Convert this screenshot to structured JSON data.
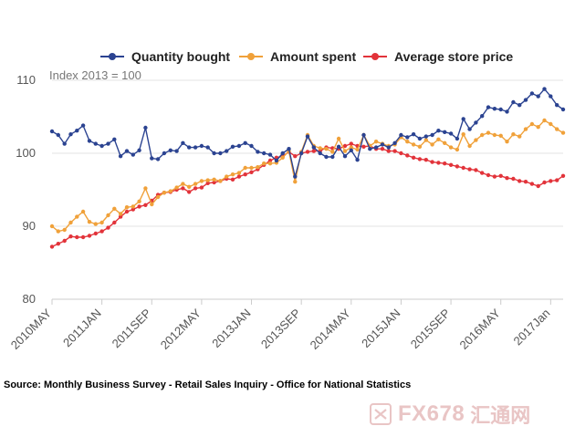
{
  "legend": {
    "quantity": "Quantity bought",
    "amount": "Amount spent",
    "price": "Average store price"
  },
  "index_note": "Index 2013 = 100",
  "source": "Source: Monthly Business Survey - Retail Sales Inquiry - Office for National Statistics",
  "watermark": {
    "latin": "FX678",
    "chinese": "汇通网"
  },
  "colors": {
    "quantity": "#2b4391",
    "amount": "#f0a13a",
    "price": "#e2333a",
    "grid": "#e3e3e3",
    "axis": "#555555"
  },
  "chart_data": {
    "type": "line",
    "title": "",
    "xlabel": "",
    "ylabel": "",
    "ylim": [
      80,
      110
    ],
    "yticks": [
      80,
      90,
      100,
      110
    ],
    "x_tick_labels": [
      "2010MAY",
      "2011JAN",
      "2011SEP",
      "2012MAY",
      "2013JAN",
      "2013SEP",
      "2014MAY",
      "2015JAN",
      "2015SEP",
      "2016MAY",
      "2017Jan"
    ],
    "x_tick_index": [
      0,
      8,
      16,
      24,
      32,
      40,
      48,
      56,
      64,
      72,
      80
    ],
    "series": [
      {
        "name": "Quantity bought",
        "values": [
          103.0,
          102.5,
          101.3,
          102.6,
          103.1,
          103.8,
          101.7,
          101.3,
          101.0,
          101.3,
          101.9,
          99.6,
          100.3,
          99.8,
          100.4,
          103.5,
          99.3,
          99.2,
          100.0,
          100.4,
          100.3,
          101.4,
          100.8,
          100.8,
          101.0,
          100.8,
          100.0,
          100.0,
          100.3,
          100.9,
          101.0,
          101.4,
          101.0,
          100.2,
          100.0,
          99.8,
          99.0,
          100.0,
          100.6,
          96.8,
          100.0,
          102.3,
          100.8,
          100.0,
          99.5,
          99.5,
          100.9,
          99.6,
          100.4,
          99.1,
          102.5,
          100.6,
          100.8,
          101.2,
          100.8,
          101.4,
          102.5,
          102.2,
          102.6,
          102.0,
          102.3,
          102.5,
          103.1,
          102.9,
          102.7,
          102.0,
          104.7,
          103.3,
          104.2,
          105.1,
          106.3,
          106.1,
          106.0,
          105.7,
          107.0,
          106.6,
          107.3,
          108.2,
          107.8,
          108.8,
          107.8,
          106.6,
          106.0
        ]
      },
      {
        "name": "Amount spent",
        "values": [
          90.0,
          89.3,
          89.5,
          90.5,
          91.3,
          92.0,
          90.6,
          90.3,
          90.5,
          91.5,
          92.4,
          91.7,
          92.6,
          92.7,
          93.4,
          95.2,
          93.0,
          94.0,
          94.6,
          94.8,
          95.3,
          95.8,
          95.4,
          95.8,
          96.2,
          96.3,
          96.4,
          96.2,
          96.8,
          97.1,
          97.3,
          98.0,
          98.0,
          98.1,
          98.6,
          98.6,
          98.7,
          99.4,
          100.3,
          96.1,
          100.2,
          102.5,
          101.0,
          100.7,
          100.6,
          100.2,
          102.0,
          100.3,
          100.8,
          100.5,
          102.5,
          101.0,
          101.6,
          101.3,
          101.0,
          101.2,
          102.2,
          101.6,
          101.2,
          100.9,
          101.8,
          101.2,
          101.9,
          101.4,
          100.8,
          100.5,
          102.6,
          101.0,
          101.8,
          102.5,
          102.8,
          102.5,
          102.4,
          101.6,
          102.6,
          102.3,
          103.3,
          104.0,
          103.6,
          104.5,
          104.0,
          103.3,
          102.8
        ]
      },
      {
        "name": "Average store price",
        "values": [
          87.2,
          87.6,
          88.0,
          88.6,
          88.5,
          88.5,
          88.7,
          89.0,
          89.3,
          89.8,
          90.5,
          91.3,
          92.0,
          92.3,
          92.7,
          92.9,
          93.5,
          94.3,
          94.6,
          94.7,
          95.0,
          95.2,
          94.7,
          95.2,
          95.3,
          95.9,
          96.0,
          96.2,
          96.5,
          96.4,
          96.8,
          97.1,
          97.4,
          97.8,
          98.4,
          99.0,
          99.4,
          99.6,
          100.2,
          99.6,
          100.0,
          100.2,
          100.3,
          100.3,
          100.8,
          100.7,
          100.6,
          101.0,
          101.3,
          101.0,
          100.9,
          101.0,
          100.6,
          100.6,
          100.3,
          100.3,
          100.0,
          99.7,
          99.4,
          99.2,
          99.1,
          98.8,
          98.7,
          98.6,
          98.4,
          98.2,
          98.0,
          97.8,
          97.7,
          97.3,
          97.0,
          96.8,
          96.9,
          96.6,
          96.5,
          96.2,
          96.1,
          95.8,
          95.5,
          96.0,
          96.2,
          96.3,
          96.9
        ]
      }
    ]
  }
}
